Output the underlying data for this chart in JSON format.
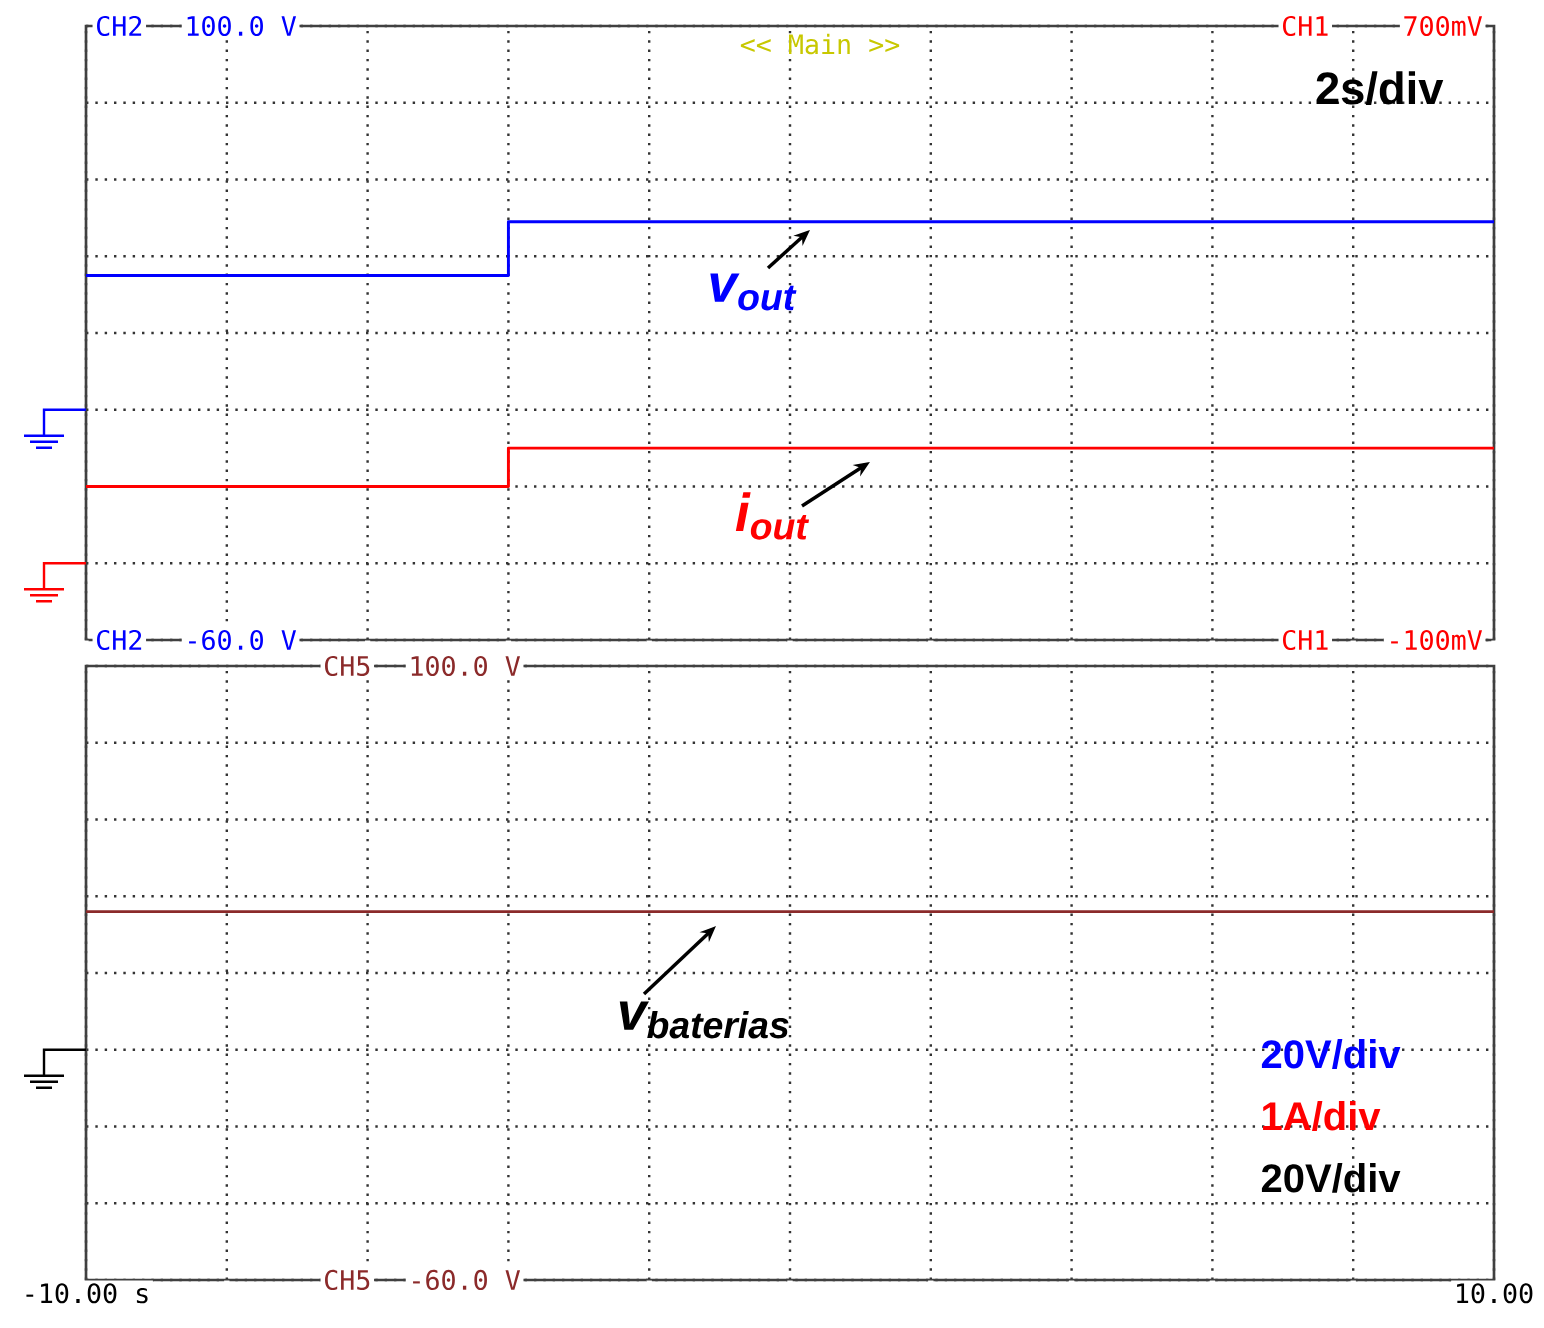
{
  "chart_data": [
    {
      "type": "step",
      "ylabel": "CH2",
      "y2label": "CH1",
      "xlim": [
        -10,
        10
      ],
      "xticks": [
        {
          "value": -10,
          "label": null
        },
        {
          "value": -8,
          "label": null
        },
        {
          "value": -6,
          "label": null
        },
        {
          "value": -4,
          "label": null
        },
        {
          "value": -2,
          "label": null
        },
        {
          "value": 0,
          "label": null
        },
        {
          "value": 2,
          "label": null
        },
        {
          "value": 4,
          "label": null
        },
        {
          "value": 6,
          "label": null
        },
        {
          "value": 8,
          "label": null
        },
        {
          "value": 10,
          "label": null
        }
      ],
      "ylim": [
        -60,
        100
      ],
      "yticks": [
        {
          "value": 100,
          "label": "100.0 V"
        },
        {
          "value": 80,
          "label": null
        },
        {
          "value": 60,
          "label": null
        },
        {
          "value": 40,
          "label": null
        },
        {
          "value": 20,
          "label": null
        },
        {
          "value": 0,
          "label": null
        },
        {
          "value": -20,
          "label": null
        },
        {
          "value": -40,
          "label": null
        },
        {
          "value": -60,
          "label": "-60.0 V"
        }
      ],
      "y2lim": [
        -100,
        700
      ],
      "y2ticks": [
        {
          "value": 700,
          "label": "700mV"
        },
        {
          "value": -100,
          "label": "-100mV"
        }
      ],
      "grid": true,
      "tick_labels": "y",
      "marker": "none",
      "annotations": [
        "<< Main >>",
        "2s/div"
      ],
      "series": [
        {
          "name": "v$_{out}$",
          "color": "#0000ff",
          "x": [
            -10,
            -4,
            10
          ],
          "values": [
            35,
            49,
            49
          ]
        },
        {
          "name": "i$_{out}$",
          "color": "#ff0000",
          "axis": "y2",
          "x": [
            -10,
            -4,
            10
          ],
          "values": [
            100,
            150,
            150
          ]
        }
      ]
    },
    {
      "type": "line",
      "ylabel": "CH5",
      "xlim": [
        -10,
        10
      ],
      "xticks": [
        {
          "value": -10,
          "label": "-10.00 s"
        },
        {
          "value": -8,
          "label": null
        },
        {
          "value": -6,
          "label": null
        },
        {
          "value": -4,
          "label": null
        },
        {
          "value": -2,
          "label": null
        },
        {
          "value": 0,
          "label": null
        },
        {
          "value": 2,
          "label": null
        },
        {
          "value": 4,
          "label": null
        },
        {
          "value": 6,
          "label": null
        },
        {
          "value": 8,
          "label": null
        },
        {
          "value": 10,
          "label": "10.00"
        }
      ],
      "ylim": [
        -60,
        100
      ],
      "yticks": [
        {
          "value": 100,
          "label": "100.0 V"
        },
        {
          "value": 80,
          "label": null
        },
        {
          "value": 60,
          "label": null
        },
        {
          "value": 40,
          "label": null
        },
        {
          "value": 20,
          "label": null
        },
        {
          "value": 0,
          "label": null
        },
        {
          "value": -20,
          "label": null
        },
        {
          "value": -40,
          "label": null
        },
        {
          "value": -60,
          "label": "-60.0 V"
        }
      ],
      "grid": true,
      "marker": "none",
      "annotations": [
        "20V/div",
        "1A/div",
        "20V/div"
      ],
      "series": [
        {
          "name": "v$_{baterias}$",
          "color": "#8b2a2a",
          "x": [
            -10,
            10
          ],
          "values": [
            36,
            36
          ]
        }
      ]
    }
  ]
}
